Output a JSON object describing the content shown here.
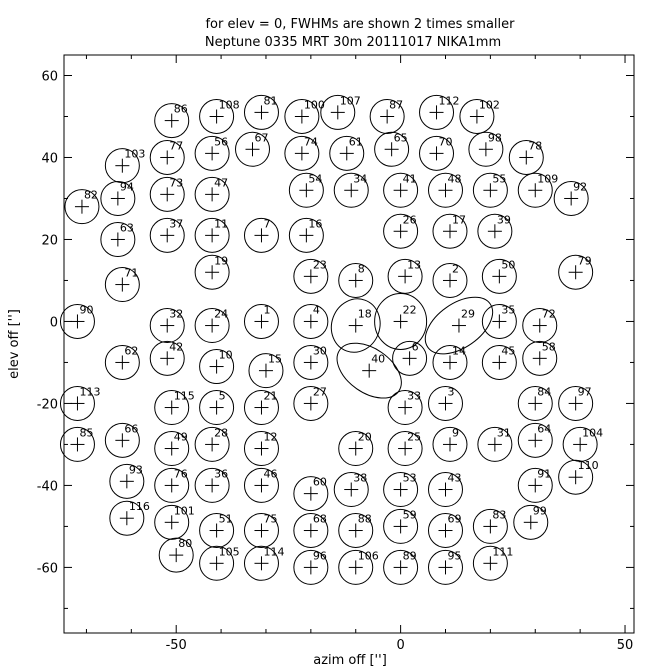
{
  "chart_data": {
    "type": "scatter",
    "title_lines": [
      "for elev = 0, FWHMs are shown 2 times smaller",
      "Neptune 0335 MRT 30m   20111017 NIKA1mm"
    ],
    "xlabel": "azim off ['']",
    "ylabel": "elev off ['']",
    "xlim": [
      -75,
      52
    ],
    "ylim": [
      -76,
      65
    ],
    "xticks": [
      -50,
      0,
      50
    ],
    "yticks": [
      -60,
      -40,
      -20,
      0,
      20,
      40,
      60
    ],
    "grid": false,
    "legend": "none",
    "colors": {
      "ink": "#000000"
    },
    "points": [
      {
        "label": "86",
        "x": -51,
        "y": 49
      },
      {
        "label": "108",
        "x": -41,
        "y": 50
      },
      {
        "label": "81",
        "x": -31,
        "y": 51
      },
      {
        "label": "100",
        "x": -22,
        "y": 50
      },
      {
        "label": "107",
        "x": -14,
        "y": 51
      },
      {
        "label": "87",
        "x": -3,
        "y": 50
      },
      {
        "label": "112",
        "x": 8,
        "y": 51
      },
      {
        "label": "102",
        "x": 17,
        "y": 50
      },
      {
        "label": "77",
        "x": -52,
        "y": 40
      },
      {
        "label": "56",
        "x": -42,
        "y": 41
      },
      {
        "label": "67",
        "x": -33,
        "y": 42
      },
      {
        "label": "74",
        "x": -22,
        "y": 41
      },
      {
        "label": "61",
        "x": -12,
        "y": 41
      },
      {
        "label": "65",
        "x": -2,
        "y": 42
      },
      {
        "label": "70",
        "x": 8,
        "y": 41
      },
      {
        "label": "98",
        "x": 19,
        "y": 42
      },
      {
        "label": "78",
        "x": 28,
        "y": 40
      },
      {
        "label": "103",
        "x": -62,
        "y": 38
      },
      {
        "label": "94",
        "x": -63,
        "y": 30
      },
      {
        "label": "73",
        "x": -52,
        "y": 31
      },
      {
        "label": "47",
        "x": -42,
        "y": 31
      },
      {
        "label": "54",
        "x": -21,
        "y": 32
      },
      {
        "label": "34",
        "x": -11,
        "y": 32
      },
      {
        "label": "41",
        "x": 0,
        "y": 32
      },
      {
        "label": "48",
        "x": 10,
        "y": 32
      },
      {
        "label": "55",
        "x": 20,
        "y": 32
      },
      {
        "label": "109",
        "x": 30,
        "y": 32
      },
      {
        "label": "92",
        "x": 38,
        "y": 30
      },
      {
        "label": "82",
        "x": -71,
        "y": 28
      },
      {
        "label": "63",
        "x": -63,
        "y": 20
      },
      {
        "label": "37",
        "x": -52,
        "y": 21
      },
      {
        "label": "11",
        "x": -42,
        "y": 21
      },
      {
        "label": "7",
        "x": -31,
        "y": 21
      },
      {
        "label": "16",
        "x": -21,
        "y": 21
      },
      {
        "label": "26",
        "x": 0,
        "y": 22
      },
      {
        "label": "17",
        "x": 11,
        "y": 22
      },
      {
        "label": "39",
        "x": 21,
        "y": 22
      },
      {
        "label": "19",
        "x": -42,
        "y": 12
      },
      {
        "label": "23",
        "x": -20,
        "y": 11
      },
      {
        "label": "8",
        "x": -10,
        "y": 10
      },
      {
        "label": "13",
        "x": 1,
        "y": 11
      },
      {
        "label": "2",
        "x": 11,
        "y": 10
      },
      {
        "label": "50",
        "x": 22,
        "y": 11
      },
      {
        "label": "79",
        "x": 39,
        "y": 12
      },
      {
        "label": "71",
        "x": -62,
        "y": 9
      },
      {
        "label": "90",
        "x": -72,
        "y": 0
      },
      {
        "label": "32",
        "x": -52,
        "y": -1
      },
      {
        "label": "24",
        "x": -42,
        "y": -1
      },
      {
        "label": "1",
        "x": -31,
        "y": 0
      },
      {
        "label": "4",
        "x": -20,
        "y": 0
      },
      {
        "label": "18",
        "x": -10,
        "y": -1
      },
      {
        "label": "22",
        "x": 0,
        "y": 0
      },
      {
        "label": "29",
        "x": 13,
        "y": -1
      },
      {
        "label": "35",
        "x": 22,
        "y": 0
      },
      {
        "label": "72",
        "x": 31,
        "y": -1
      },
      {
        "label": "62",
        "x": -62,
        "y": -10
      },
      {
        "label": "42",
        "x": -52,
        "y": -9
      },
      {
        "label": "10",
        "x": -41,
        "y": -11
      },
      {
        "label": "15",
        "x": -30,
        "y": -12
      },
      {
        "label": "30",
        "x": -20,
        "y": -10
      },
      {
        "label": "40",
        "x": -7,
        "y": -12
      },
      {
        "label": "6",
        "x": 2,
        "y": -9
      },
      {
        "label": "14",
        "x": 11,
        "y": -10
      },
      {
        "label": "45",
        "x": 22,
        "y": -10
      },
      {
        "label": "58",
        "x": 31,
        "y": -9
      },
      {
        "label": "113",
        "x": -72,
        "y": -20
      },
      {
        "label": "115",
        "x": -51,
        "y": -21
      },
      {
        "label": "5",
        "x": -41,
        "y": -21
      },
      {
        "label": "21",
        "x": -31,
        "y": -21
      },
      {
        "label": "27",
        "x": -20,
        "y": -20
      },
      {
        "label": "33",
        "x": 1,
        "y": -21
      },
      {
        "label": "3",
        "x": 10,
        "y": -20
      },
      {
        "label": "84",
        "x": 30,
        "y": -20
      },
      {
        "label": "97",
        "x": 39,
        "y": -20
      },
      {
        "label": "85",
        "x": -72,
        "y": -30
      },
      {
        "label": "66",
        "x": -62,
        "y": -29
      },
      {
        "label": "49",
        "x": -51,
        "y": -31
      },
      {
        "label": "28",
        "x": -42,
        "y": -30
      },
      {
        "label": "12",
        "x": -31,
        "y": -31
      },
      {
        "label": "20",
        "x": -10,
        "y": -31
      },
      {
        "label": "25",
        "x": 1,
        "y": -31
      },
      {
        "label": "9",
        "x": 11,
        "y": -30
      },
      {
        "label": "31",
        "x": 21,
        "y": -30
      },
      {
        "label": "64",
        "x": 30,
        "y": -29
      },
      {
        "label": "104",
        "x": 40,
        "y": -30
      },
      {
        "label": "93",
        "x": -61,
        "y": -39
      },
      {
        "label": "76",
        "x": -51,
        "y": -40
      },
      {
        "label": "36",
        "x": -42,
        "y": -40
      },
      {
        "label": "46",
        "x": -31,
        "y": -40
      },
      {
        "label": "60",
        "x": -20,
        "y": -42
      },
      {
        "label": "38",
        "x": -11,
        "y": -41
      },
      {
        "label": "53",
        "x": 0,
        "y": -41
      },
      {
        "label": "43",
        "x": 10,
        "y": -41
      },
      {
        "label": "91",
        "x": 30,
        "y": -40
      },
      {
        "label": "110",
        "x": 39,
        "y": -38
      },
      {
        "label": "116",
        "x": -61,
        "y": -48
      },
      {
        "label": "101",
        "x": -51,
        "y": -49
      },
      {
        "label": "51",
        "x": -41,
        "y": -51
      },
      {
        "label": "75",
        "x": -31,
        "y": -51
      },
      {
        "label": "68",
        "x": -20,
        "y": -51
      },
      {
        "label": "88",
        "x": -10,
        "y": -51
      },
      {
        "label": "59",
        "x": 0,
        "y": -50
      },
      {
        "label": "69",
        "x": 10,
        "y": -51
      },
      {
        "label": "83",
        "x": 20,
        "y": -50
      },
      {
        "label": "99",
        "x": 29,
        "y": -49
      },
      {
        "label": "80",
        "x": -50,
        "y": -57
      },
      {
        "label": "105",
        "x": -41,
        "y": -59
      },
      {
        "label": "114",
        "x": -31,
        "y": -59
      },
      {
        "label": "96",
        "x": -20,
        "y": -60
      },
      {
        "label": "106",
        "x": -10,
        "y": -60
      },
      {
        "label": "89",
        "x": 0,
        "y": -60
      },
      {
        "label": "95",
        "x": 10,
        "y": -60
      },
      {
        "label": "111",
        "x": 20,
        "y": -59
      }
    ]
  }
}
